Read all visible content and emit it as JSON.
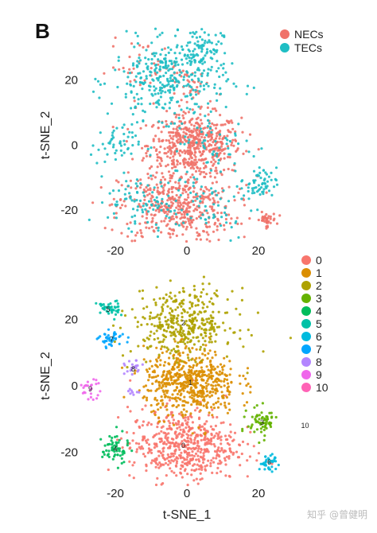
{
  "panel_label": "B",
  "watermark": "知乎 @曾健明",
  "chart_data": [
    {
      "type": "scatter",
      "xlabel": "",
      "ylabel": "t-SNE_2",
      "xlim": [
        -30,
        30
      ],
      "ylim": [
        -30,
        36
      ],
      "x_ticks": [
        "-20",
        "0",
        "20"
      ],
      "y_ticks": [
        "20",
        "0",
        "-20"
      ],
      "x_tick_values": [
        -20,
        0,
        20
      ],
      "y_tick_values": [
        20,
        0,
        -20
      ],
      "legend_position": "top-right",
      "series": [
        {
          "name": "NECs",
          "color": "#F0736A",
          "clusters": [
            {
              "cx": 2,
              "cy": 0,
              "sx": 6.5,
              "sy": 4.8,
              "n": 520
            },
            {
              "cx": -3,
              "cy": -19,
              "sx": 8,
              "sy": 5.5,
              "n": 440
            },
            {
              "cx": 22,
              "cy": -23,
              "sx": 1.5,
              "sy": 1.1,
              "n": 40
            },
            {
              "cx": -12,
              "cy": 24,
              "sx": 5,
              "sy": 4,
              "n": 40
            },
            {
              "cx": 2,
              "cy": 18,
              "sx": 4,
              "sy": 3,
              "n": 40
            },
            {
              "cx": 33,
              "cy": -12,
              "sx": 0.7,
              "sy": 0.6,
              "n": 8
            }
          ]
        },
        {
          "name": "TECs",
          "color": "#1FBEC4",
          "clusters": [
            {
              "cx": -5,
              "cy": 20,
              "sx": 8,
              "sy": 6,
              "n": 330
            },
            {
              "cx": 3,
              "cy": 30,
              "sx": 3.5,
              "sy": 3,
              "n": 80
            },
            {
              "cx": -20,
              "cy": 0,
              "sx": 3.5,
              "sy": 3,
              "n": 50
            },
            {
              "cx": 20,
              "cy": -12,
              "sx": 2.5,
              "sy": 2.5,
              "n": 60
            },
            {
              "cx": -14,
              "cy": -17,
              "sx": 4,
              "sy": 4,
              "n": 60
            },
            {
              "cx": 2,
              "cy": -18,
              "sx": 9,
              "sy": 6,
              "n": 90
            },
            {
              "cx": 8,
              "cy": 0,
              "sx": 6,
              "sy": 5,
              "n": 60
            },
            {
              "cx": 33,
              "cy": -12,
              "sx": 0.6,
              "sy": 0.5,
              "n": 6
            }
          ]
        }
      ]
    },
    {
      "type": "scatter",
      "xlabel": "t-SNE_1",
      "ylabel": "t-SNE_2",
      "xlim": [
        -30,
        30
      ],
      "ylim": [
        -30,
        36
      ],
      "x_ticks": [
        "-20",
        "0",
        "20"
      ],
      "y_ticks": [
        "20",
        "0",
        "-20"
      ],
      "x_tick_values": [
        -20,
        0,
        20
      ],
      "y_tick_values": [
        20,
        0,
        -20
      ],
      "legend_position": "top-right",
      "series": [
        {
          "name": "0",
          "color": "#F8766D",
          "label_at": [
            -1,
            -18
          ],
          "clusters": [
            {
              "cx": -1,
              "cy": -18,
              "sx": 7.5,
              "sy": 5.5,
              "n": 560
            }
          ]
        },
        {
          "name": "1",
          "color": "#DB8E00",
          "label_at": [
            1,
            1
          ],
          "clusters": [
            {
              "cx": 1,
              "cy": 1,
              "sx": 6.5,
              "sy": 5,
              "n": 560
            }
          ]
        },
        {
          "name": "2",
          "color": "#AEA200",
          "label_at": [
            -1,
            19
          ],
          "clusters": [
            {
              "cx": -1,
              "cy": 19,
              "sx": 7,
              "sy": 5,
              "n": 380
            }
          ]
        },
        {
          "name": "3",
          "color": "#64B200",
          "label_at": [
            21,
            -11
          ],
          "clusters": [
            {
              "cx": 21,
              "cy": -11,
              "sx": 2,
              "sy": 2.2,
              "n": 70
            }
          ]
        },
        {
          "name": "4",
          "color": "#00BD5C",
          "label_at": [
            -20,
            -19
          ],
          "clusters": [
            {
              "cx": -20,
              "cy": -19,
              "sx": 1.8,
              "sy": 2.4,
              "n": 60
            }
          ]
        },
        {
          "name": "5",
          "color": "#00C1A7",
          "label_at": [
            -22,
            23
          ],
          "clusters": [
            {
              "cx": -22,
              "cy": 23,
              "sx": 1.6,
              "sy": 1.4,
              "n": 45
            }
          ]
        },
        {
          "name": "6",
          "color": "#00BADE",
          "label_at": [
            23,
            -23
          ],
          "clusters": [
            {
              "cx": 23,
              "cy": -23,
              "sx": 1.4,
              "sy": 1.2,
              "n": 35
            }
          ]
        },
        {
          "name": "7",
          "color": "#00A6FF",
          "label_at": [
            -21,
            14
          ],
          "clusters": [
            {
              "cx": -21,
              "cy": 14,
              "sx": 1.8,
              "sy": 1.2,
              "n": 40
            }
          ]
        },
        {
          "name": "8",
          "color": "#B385FF",
          "label_at": [
            -15,
            5
          ],
          "clusters": [
            {
              "cx": -15,
              "cy": 5,
              "sx": 1.2,
              "sy": 1.2,
              "n": 20
            },
            {
              "cx": -15,
              "cy": -2,
              "sx": 0.8,
              "sy": 0.6,
              "n": 8
            }
          ]
        },
        {
          "name": "9",
          "color": "#EF67EB",
          "label_at": [
            -27,
            -1
          ],
          "clusters": [
            {
              "cx": -27,
              "cy": -1,
              "sx": 1.6,
              "sy": 1.4,
              "n": 25
            }
          ]
        },
        {
          "name": "10",
          "color": "#FF63B6",
          "label_at": [
            33,
            -12
          ],
          "clusters": [
            {
              "cx": 33,
              "cy": -12,
              "sx": 0.6,
              "sy": 0.5,
              "n": 8
            }
          ]
        }
      ]
    }
  ]
}
